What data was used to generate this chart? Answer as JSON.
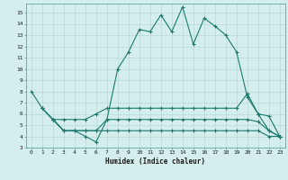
{
  "xlabel": "Humidex (Indice chaleur)",
  "bg_color": "#d4eeed",
  "line_color": "#1a7a6e",
  "grid_color": "#b8d8d8",
  "xlim": [
    -0.5,
    23.5
  ],
  "ylim": [
    3,
    15.8
  ],
  "xticks": [
    0,
    1,
    2,
    3,
    4,
    5,
    6,
    7,
    8,
    9,
    10,
    11,
    12,
    13,
    14,
    15,
    16,
    17,
    18,
    19,
    20,
    21,
    22,
    23
  ],
  "yticks": [
    3,
    4,
    5,
    6,
    7,
    8,
    9,
    10,
    11,
    12,
    13,
    14,
    15
  ],
  "series": [
    {
      "x": [
        0,
        1,
        2,
        3,
        4,
        5,
        6,
        7,
        8,
        9,
        10,
        11,
        12,
        13,
        14,
        15,
        16,
        17,
        18,
        19,
        20,
        21,
        22,
        23
      ],
      "y": [
        8.0,
        6.5,
        5.5,
        4.5,
        4.5,
        4.0,
        3.5,
        5.5,
        10.0,
        11.5,
        13.5,
        13.3,
        14.8,
        13.3,
        15.5,
        12.2,
        14.5,
        13.8,
        13.0,
        11.5,
        7.5,
        6.0,
        4.5,
        4.0
      ]
    },
    {
      "x": [
        1,
        2,
        3,
        4,
        5,
        6,
        7,
        8,
        9,
        10,
        11,
        12,
        13,
        14,
        15,
        16,
        17,
        18,
        19,
        20,
        21,
        22,
        23
      ],
      "y": [
        6.5,
        5.5,
        5.5,
        5.5,
        5.5,
        6.0,
        6.5,
        6.5,
        6.5,
        6.5,
        6.5,
        6.5,
        6.5,
        6.5,
        6.5,
        6.5,
        6.5,
        6.5,
        6.5,
        7.8,
        6.0,
        5.8,
        4.0
      ]
    },
    {
      "x": [
        1,
        2,
        3,
        4,
        5,
        6,
        7,
        8,
        9,
        10,
        11,
        12,
        13,
        14,
        15,
        16,
        17,
        18,
        19,
        20,
        21,
        22,
        23
      ],
      "y": [
        6.5,
        5.5,
        4.5,
        4.5,
        4.5,
        4.5,
        5.5,
        5.5,
        5.5,
        5.5,
        5.5,
        5.5,
        5.5,
        5.5,
        5.5,
        5.5,
        5.5,
        5.5,
        5.5,
        5.5,
        5.3,
        4.5,
        4.0
      ]
    },
    {
      "x": [
        2,
        3,
        4,
        5,
        6,
        7,
        8,
        9,
        10,
        11,
        12,
        13,
        14,
        15,
        16,
        17,
        18,
        19,
        20,
        21,
        22,
        23
      ],
      "y": [
        5.5,
        4.5,
        4.5,
        4.5,
        4.5,
        4.5,
        4.5,
        4.5,
        4.5,
        4.5,
        4.5,
        4.5,
        4.5,
        4.5,
        4.5,
        4.5,
        4.5,
        4.5,
        4.5,
        4.5,
        4.0,
        4.0
      ]
    }
  ]
}
